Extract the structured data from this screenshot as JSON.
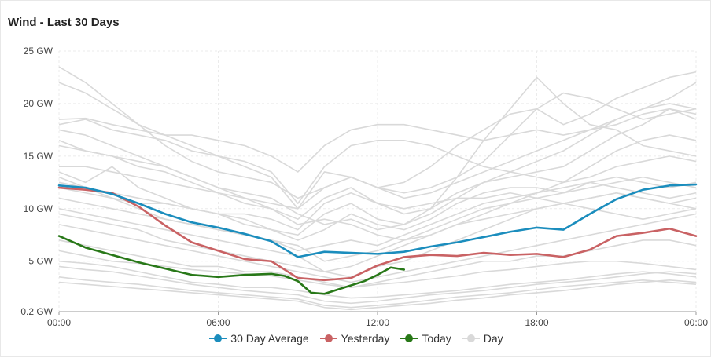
{
  "chart_data": {
    "type": "line",
    "title": "Wind - Last 30 Days",
    "x_ticks": [
      "00:00",
      "06:00",
      "12:00",
      "18:00",
      "00:00"
    ],
    "y_ticks": [
      {
        "value": 25,
        "label": "25 GW"
      },
      {
        "value": 20,
        "label": "20 GW"
      },
      {
        "value": 15,
        "label": "15 GW"
      },
      {
        "value": 10,
        "label": "10 GW"
      },
      {
        "value": 5,
        "label": "5 GW"
      },
      {
        "value": 0.2,
        "label": "0.2 GW"
      }
    ],
    "xlim": [
      0,
      24
    ],
    "ylim": [
      0.2,
      25
    ],
    "legend_position": "bottom",
    "series": [
      {
        "name": "30 Day Average",
        "color": "#1b8dbd",
        "x": [
          0,
          1,
          2,
          3,
          4,
          5,
          6,
          7,
          8,
          9,
          10,
          11,
          12,
          13,
          14,
          15,
          16,
          17,
          18,
          19,
          20,
          21,
          22,
          23,
          24
        ],
        "values": [
          12.2,
          12.0,
          11.4,
          10.5,
          9.5,
          8.7,
          8.2,
          7.6,
          6.9,
          5.4,
          5.9,
          5.8,
          5.7,
          5.9,
          6.4,
          6.8,
          7.3,
          7.8,
          8.2,
          8.0,
          9.5,
          10.9,
          11.8,
          12.2,
          12.3
        ]
      },
      {
        "name": "Yesterday",
        "color": "#c96264",
        "x": [
          0,
          1,
          2,
          3,
          4,
          5,
          6,
          7,
          8,
          9,
          10,
          11,
          12,
          13,
          14,
          15,
          16,
          17,
          18,
          19,
          20,
          21,
          22,
          23,
          24
        ],
        "values": [
          12.0,
          11.8,
          11.5,
          10.2,
          8.4,
          6.8,
          6.0,
          5.2,
          5.0,
          3.4,
          3.2,
          3.4,
          4.6,
          5.4,
          5.6,
          5.5,
          5.8,
          5.6,
          5.7,
          5.4,
          6.1,
          7.4,
          7.7,
          8.1,
          7.4
        ]
      },
      {
        "name": "Today",
        "color": "#287818",
        "x": [
          0,
          1,
          2,
          3,
          4,
          5,
          6,
          7,
          8,
          8.5,
          9,
          9.5,
          10,
          10.5,
          11,
          11.5,
          12,
          12.5,
          13
        ],
        "values": [
          7.4,
          6.3,
          5.6,
          4.9,
          4.3,
          3.7,
          3.5,
          3.7,
          3.8,
          3.6,
          3.1,
          2.0,
          1.9,
          2.3,
          2.7,
          3.1,
          3.7,
          4.4,
          4.2
        ]
      },
      {
        "name": "Day",
        "color": "#d9d9d9",
        "days": [
          [
            23.5,
            22.0,
            20.0,
            18.0,
            16.0,
            14.5,
            13.5,
            13.0,
            12.5,
            11.0,
            12.0,
            13.0,
            12.0,
            11.0,
            11.5,
            12.5,
            13.5,
            14.5,
            15.5,
            16.5,
            17.5,
            18.5,
            19.5,
            20.5,
            22.0
          ],
          [
            22.0,
            21.0,
            19.5,
            18.0,
            17.0,
            16.0,
            15.0,
            14.0,
            13.0,
            10.0,
            12.0,
            13.0,
            12.0,
            12.5,
            14.0,
            16.0,
            17.5,
            19.0,
            19.5,
            18.0,
            19.0,
            20.5,
            21.5,
            22.5,
            23.0
          ],
          [
            18.5,
            18.6,
            18.0,
            17.5,
            17.0,
            17.0,
            16.5,
            16.0,
            15.0,
            13.5,
            16.0,
            17.5,
            18.0,
            18.0,
            17.5,
            17.0,
            16.5,
            17.0,
            17.5,
            17.0,
            17.5,
            18.0,
            19.0,
            19.5,
            19.0
          ],
          [
            18.0,
            18.5,
            17.5,
            17.0,
            16.5,
            15.5,
            15.0,
            14.5,
            13.5,
            10.5,
            14.0,
            16.0,
            16.5,
            16.5,
            16.0,
            15.0,
            14.0,
            13.5,
            13.0,
            12.5,
            13.0,
            14.0,
            14.5,
            15.0,
            14.5
          ],
          [
            17.5,
            17.0,
            16.0,
            15.0,
            14.0,
            13.0,
            12.0,
            11.0,
            10.5,
            10.0,
            13.5,
            13.0,
            12.0,
            11.5,
            12.0,
            13.0,
            14.5,
            17.0,
            19.5,
            21.0,
            20.5,
            19.5,
            18.5,
            19.0,
            19.5
          ],
          [
            16.0,
            15.5,
            15.0,
            14.5,
            14.0,
            13.0,
            12.0,
            11.5,
            11.0,
            9.5,
            8.5,
            9.0,
            8.0,
            8.5,
            10.0,
            13.0,
            16.5,
            19.5,
            22.5,
            20.0,
            18.0,
            17.5,
            16.0,
            15.5,
            15.0
          ],
          [
            14.0,
            14.0,
            13.5,
            13.0,
            12.5,
            12.0,
            11.5,
            10.5,
            10.0,
            9.0,
            11.0,
            12.0,
            10.5,
            9.5,
            10.0,
            11.5,
            12.5,
            13.0,
            13.5,
            14.0,
            15.5,
            17.0,
            18.0,
            19.5,
            18.5
          ],
          [
            13.5,
            12.5,
            14.0,
            12.0,
            11.0,
            10.0,
            9.5,
            9.0,
            8.0,
            7.5,
            9.5,
            10.5,
            9.0,
            8.5,
            9.5,
            11.0,
            12.5,
            13.5,
            14.5,
            15.5,
            17.0,
            18.5,
            19.5,
            20.0,
            19.5
          ],
          [
            13.0,
            12.0,
            11.5,
            11.0,
            10.5,
            10.0,
            9.5,
            8.5,
            8.0,
            7.0,
            8.0,
            9.5,
            8.5,
            8.0,
            9.0,
            10.5,
            11.5,
            12.0,
            12.0,
            11.5,
            12.5,
            13.0,
            12.5,
            12.0,
            12.5
          ],
          [
            12.5,
            12.0,
            11.0,
            10.0,
            9.0,
            8.5,
            8.0,
            7.5,
            7.0,
            6.0,
            6.5,
            7.0,
            6.5,
            7.5,
            8.5,
            9.5,
            10.5,
            11.0,
            11.5,
            12.0,
            12.5,
            12.0,
            11.5,
            11.0,
            11.5
          ],
          [
            11.0,
            10.5,
            10.0,
            9.5,
            9.0,
            8.5,
            8.0,
            7.5,
            7.0,
            6.5,
            5.0,
            5.5,
            6.0,
            7.0,
            8.0,
            9.0,
            10.0,
            10.5,
            11.0,
            11.5,
            12.0,
            12.5,
            13.0,
            12.5,
            12.0
          ],
          [
            10.0,
            9.5,
            9.0,
            8.5,
            8.0,
            7.5,
            7.0,
            6.5,
            6.0,
            5.5,
            4.0,
            4.5,
            5.5,
            6.5,
            7.5,
            8.5,
            9.0,
            9.5,
            10.0,
            10.5,
            11.0,
            11.5,
            11.0,
            10.5,
            10.0
          ],
          [
            9.5,
            9.0,
            8.5,
            8.0,
            7.0,
            6.5,
            6.0,
            5.5,
            5.0,
            4.5,
            4.0,
            3.5,
            4.5,
            5.0,
            6.0,
            7.0,
            8.0,
            9.0,
            10.0,
            10.5,
            10.0,
            9.5,
            9.0,
            9.5,
            10.0
          ],
          [
            8.5,
            8.0,
            7.5,
            7.0,
            6.5,
            6.0,
            5.5,
            5.0,
            4.5,
            4.0,
            3.5,
            3.0,
            3.5,
            4.0,
            4.5,
            5.0,
            5.5,
            6.0,
            6.5,
            7.0,
            7.5,
            8.0,
            8.5,
            9.0,
            9.5
          ],
          [
            7.0,
            6.5,
            6.0,
            5.5,
            5.0,
            4.5,
            4.5,
            4.0,
            4.0,
            3.5,
            3.0,
            2.5,
            3.0,
            3.5,
            4.0,
            4.5,
            5.0,
            5.0,
            5.5,
            5.5,
            6.0,
            6.5,
            7.0,
            7.0,
            6.5
          ],
          [
            6.0,
            5.5,
            5.0,
            4.8,
            4.5,
            4.2,
            4.0,
            3.8,
            3.6,
            3.2,
            2.8,
            2.5,
            2.8,
            3.0,
            3.3,
            3.6,
            4.0,
            4.2,
            4.5,
            4.8,
            5.0,
            5.0,
            4.8,
            4.5,
            4.2
          ],
          [
            5.0,
            4.8,
            4.5,
            4.0,
            3.5,
            3.0,
            2.8,
            2.5,
            2.5,
            2.2,
            1.8,
            1.5,
            1.6,
            1.8,
            2.0,
            2.2,
            2.5,
            2.8,
            3.0,
            3.2,
            3.5,
            3.8,
            4.0,
            3.8,
            3.5
          ],
          [
            4.5,
            4.2,
            4.0,
            3.6,
            3.2,
            2.8,
            2.5,
            2.2,
            2.0,
            1.8,
            1.2,
            1.0,
            1.2,
            1.5,
            1.8,
            2.0,
            2.2,
            2.5,
            2.8,
            3.0,
            3.2,
            3.5,
            3.8,
            4.0,
            3.8
          ],
          [
            3.5,
            3.2,
            3.0,
            2.8,
            2.5,
            2.2,
            2.0,
            1.8,
            1.6,
            1.4,
            0.8,
            0.6,
            0.8,
            1.0,
            1.3,
            1.6,
            1.8,
            2.0,
            2.3,
            2.6,
            2.8,
            3.0,
            3.2,
            3.0,
            2.8
          ],
          [
            3.0,
            2.8,
            2.6,
            2.4,
            2.2,
            2.0,
            1.8,
            1.6,
            1.4,
            1.2,
            0.6,
            0.4,
            0.6,
            0.8,
            1.0,
            1.3,
            1.5,
            1.8,
            2.0,
            2.2,
            2.5,
            2.8,
            3.0,
            3.2,
            3.0
          ],
          [
            16.5,
            15.5,
            15.0,
            14.0,
            13.5,
            12.5,
            11.5,
            11.0,
            10.0,
            8.5,
            9.0,
            8.5,
            7.5,
            7.0,
            7.5,
            8.5,
            9.5,
            10.5,
            11.5,
            12.5,
            14.0,
            15.5,
            16.5,
            17.0,
            16.5
          ],
          [
            12.0,
            11.5,
            11.0,
            10.5,
            10.5,
            10.0,
            9.5,
            9.5,
            9.0,
            8.0,
            10.5,
            11.5,
            10.5,
            10.0,
            10.5,
            11.0,
            11.0,
            11.5,
            11.0,
            10.5,
            11.0,
            11.5,
            11.0,
            10.5,
            11.0
          ]
        ]
      }
    ]
  }
}
